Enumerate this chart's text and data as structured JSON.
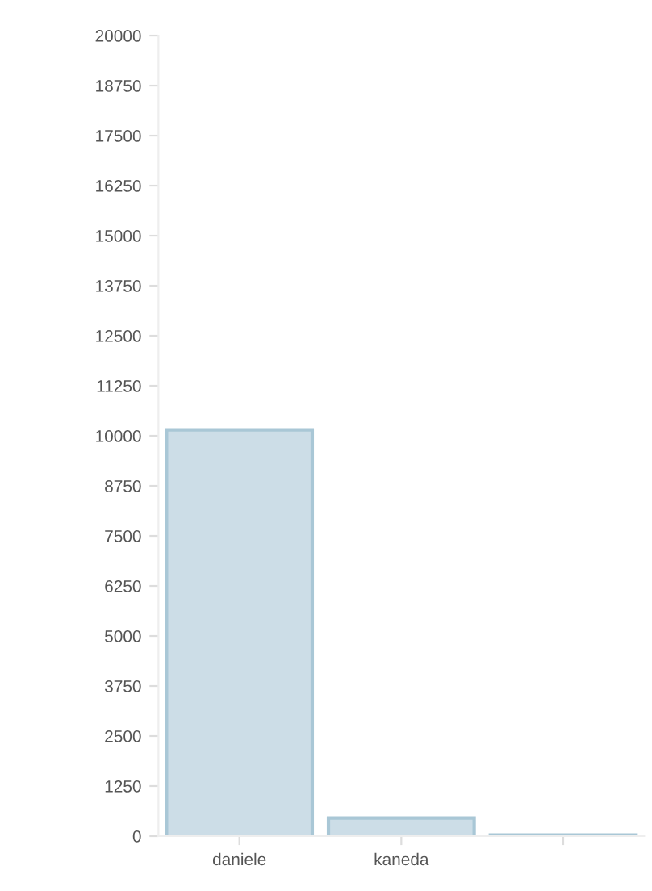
{
  "chart_data": {
    "type": "bar",
    "categories": [
      "daniele",
      "kaneda",
      null
    ],
    "values": [
      10150,
      450,
      30
    ],
    "color": "#ccdde7",
    "ylim": [
      0,
      20000
    ],
    "yticks": [
      0,
      1250,
      2500,
      3750,
      5000,
      6250,
      7500,
      8750,
      10000,
      11250,
      12500,
      13750,
      15000,
      16250,
      17500,
      18750,
      20000
    ],
    "grid": false
  }
}
